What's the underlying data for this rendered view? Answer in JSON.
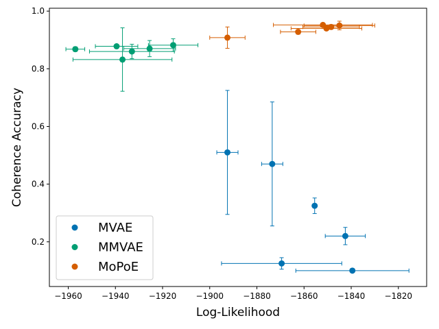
{
  "chart_data": {
    "type": "scatter",
    "title": "",
    "xlabel": "Log-Likelihood",
    "ylabel": "Coherence Accuracy",
    "xlim": [
      -1968,
      -1808
    ],
    "ylim": [
      0.045,
      1.01
    ],
    "xticks": [
      -1960,
      -1940,
      -1920,
      -1900,
      -1880,
      -1860,
      -1840,
      -1820
    ],
    "xtick_labels": [
      "−1960",
      "−1940",
      "−1920",
      "−1900",
      "−1880",
      "−1860",
      "−1840",
      "−1820"
    ],
    "yticks": [
      0.2,
      0.4,
      0.6,
      0.8,
      1.0
    ],
    "ytick_labels": [
      "0.2",
      "0.4",
      "0.6",
      "0.8",
      "1.0"
    ],
    "legend_position": "lower-left",
    "grid": false,
    "series": [
      {
        "name": "MVAE",
        "color": "#0072b2",
        "points": [
          {
            "x": -1892.5,
            "y": 0.51,
            "xerr": 4.5,
            "yerr": 0.215
          },
          {
            "x": -1873.5,
            "y": 0.47,
            "xerr": 4.5,
            "yerr": 0.215
          },
          {
            "x": -1855.5,
            "y": 0.325,
            "xerr": 0.3,
            "yerr": 0.027
          },
          {
            "x": -1842.5,
            "y": 0.22,
            "xerr": 8.5,
            "yerr": 0.03
          },
          {
            "x": -1869.5,
            "y": 0.125,
            "xerr": 25.5,
            "yerr": 0.02
          },
          {
            "x": -1839.5,
            "y": 0.1,
            "xerr": 24.0,
            "yerr": 0.005
          }
        ]
      },
      {
        "name": "MMVAE",
        "color": "#009e73",
        "points": [
          {
            "x": -1957.0,
            "y": 0.868,
            "xerr": 4.0,
            "yerr": 0.008
          },
          {
            "x": -1939.5,
            "y": 0.878,
            "xerr": 9.0,
            "yerr": 0.006
          },
          {
            "x": -1937.0,
            "y": 0.832,
            "xerr": 21.0,
            "yerr": 0.11
          },
          {
            "x": -1933.0,
            "y": 0.86,
            "xerr": 18.0,
            "yerr": 0.025
          },
          {
            "x": -1925.5,
            "y": 0.87,
            "xerr": 11.0,
            "yerr": 0.028
          },
          {
            "x": -1915.5,
            "y": 0.882,
            "xerr": 10.5,
            "yerr": 0.022
          }
        ]
      },
      {
        "name": "MoPoE",
        "color": "#d55e00",
        "points": [
          {
            "x": -1892.5,
            "y": 0.908,
            "xerr": 7.5,
            "yerr": 0.037
          },
          {
            "x": -1862.5,
            "y": 0.928,
            "xerr": 7.5,
            "yerr": 0.008
          },
          {
            "x": -1852.0,
            "y": 0.952,
            "xerr": 21.0,
            "yerr": 0.005
          },
          {
            "x": -1850.5,
            "y": 0.94,
            "xerr": 15.0,
            "yerr": 0.007
          },
          {
            "x": -1848.5,
            "y": 0.945,
            "xerr": 12.0,
            "yerr": 0.008
          },
          {
            "x": -1845.0,
            "y": 0.95,
            "xerr": 15.0,
            "yerr": 0.015
          }
        ]
      }
    ]
  }
}
